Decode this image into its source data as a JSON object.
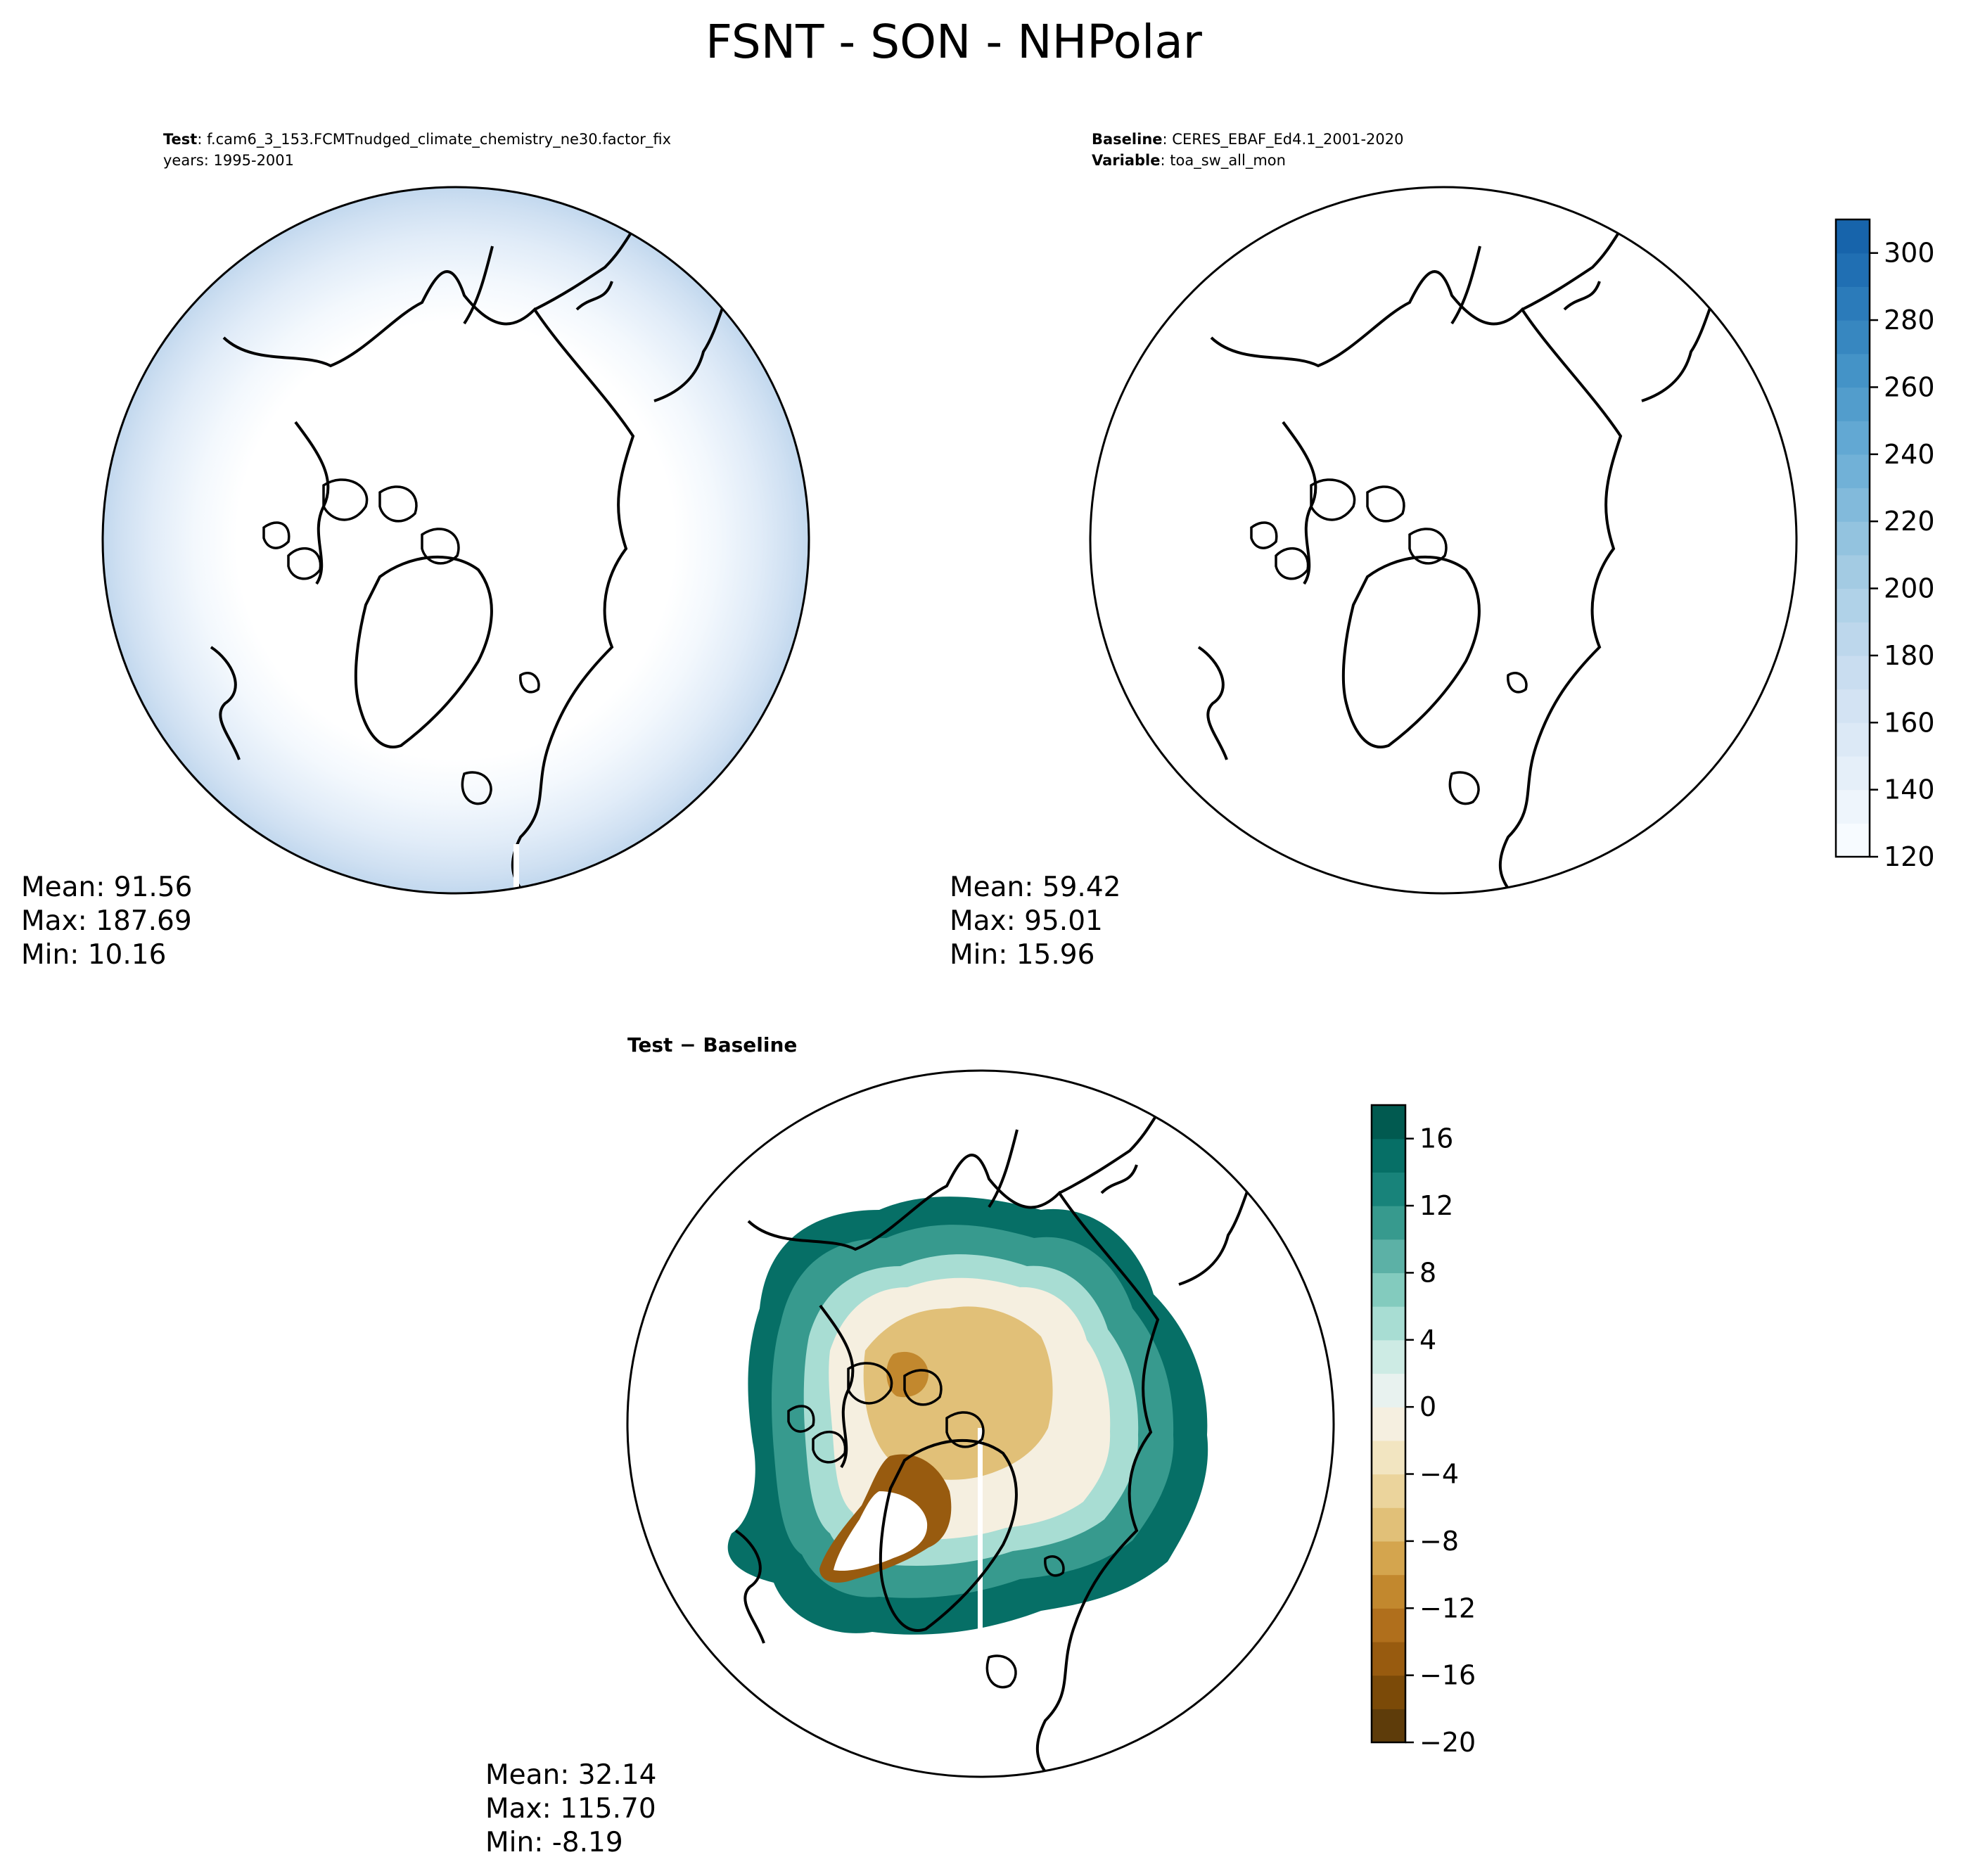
{
  "title": "FSNT - SON - NHPolar",
  "test_panel": {
    "header": [
      {
        "label": "Test",
        "value": "f.cam6_3_153.FCMTnudged_climate_chemistry_ne30.factor_fix"
      },
      {
        "label": "",
        "value": "years: 1995-2001"
      }
    ],
    "stats": {
      "mean": "Mean: 91.56",
      "max": "Max: 187.69",
      "min": "Min: 10.16"
    }
  },
  "baseline_panel": {
    "header": [
      {
        "label": "Baseline",
        "value": "CERES_EBAF_Ed4.1_2001-2020"
      },
      {
        "label": "Variable",
        "value": "toa_sw_all_mon"
      }
    ],
    "stats": {
      "mean": "Mean: 59.42",
      "max": "Max: 95.01",
      "min": "Min: 15.96"
    }
  },
  "diff_panel": {
    "header": {
      "text": "Test − Baseline"
    },
    "stats": {
      "mean": "Mean: 32.14",
      "max": "Max: 115.70",
      "min": "Min: -8.19"
    }
  },
  "colors": {
    "blues": [
      "#f7fbff",
      "#eef5fc",
      "#e5eff9",
      "#dce9f6",
      "#d3e3f3",
      "#c9ddf0",
      "#bdd7ec",
      "#b0d2e8",
      "#a3cbe3",
      "#93c3df",
      "#82badb",
      "#71b1d7",
      "#62a8d3",
      "#529dcc",
      "#4493c7",
      "#3787c0",
      "#2b7bba",
      "#206fb3",
      "#1764ab",
      "#0e58a2",
      "#084c94",
      "#084185",
      "#083674"
    ],
    "brbg": [
      "#5e3c0a",
      "#7b4a08",
      "#985b0f",
      "#b06f1c",
      "#c2882e",
      "#d4a54e",
      "#e1c078",
      "#ebd49c",
      "#f2e5c1",
      "#f5efe0",
      "#e8f2ef",
      "#cdebe4",
      "#a8ddd3",
      "#83cbbe",
      "#5cb1a6",
      "#379a8e",
      "#18837a",
      "#066f66",
      "#015a50",
      "#00473c"
    ]
  },
  "chart_data": [
    {
      "type": "heatmap",
      "name": "test",
      "projection": "north-polar-stereographic",
      "colorbar": false,
      "field_description": "high values near the outer circle, white (below 120) over the Arctic interior"
    },
    {
      "type": "heatmap",
      "name": "baseline",
      "projection": "north-polar-stereographic",
      "colorbar": {
        "position": "right",
        "range": [
          120,
          310
        ],
        "levels": [
          120,
          130,
          140,
          150,
          160,
          170,
          180,
          190,
          200,
          210,
          220,
          230,
          240,
          250,
          260,
          270,
          280,
          290,
          300,
          310
        ],
        "ticks": [
          120,
          140,
          160,
          180,
          200,
          220,
          240,
          260,
          280,
          300
        ],
        "tick_labels": [
          "120",
          "140",
          "160",
          "180",
          "200",
          "220",
          "240",
          "260",
          "280",
          "300"
        ],
        "colormap": "Blues"
      },
      "field_description": "all values below 120, rendered white"
    },
    {
      "type": "heatmap",
      "name": "difference",
      "projection": "north-polar-stereographic",
      "colorbar": {
        "position": "right",
        "range": [
          -20,
          18
        ],
        "levels": [
          -20,
          -18,
          -16,
          -14,
          -12,
          -10,
          -8,
          -6,
          -4,
          -2,
          0,
          2,
          4,
          6,
          8,
          10,
          12,
          14,
          16,
          18
        ],
        "ticks": [
          -20,
          -16,
          -12,
          -8,
          -4,
          0,
          4,
          8,
          12,
          16
        ],
        "tick_labels": [
          "−20",
          "−16",
          "−12",
          "−8",
          "−4",
          "0",
          "4",
          "8",
          "12",
          "16"
        ],
        "colormap": "BrBG"
      },
      "field_description": "brown negative values over central Arctic and Greenland, teal positive values in a ring around the sea ice margin"
    }
  ]
}
